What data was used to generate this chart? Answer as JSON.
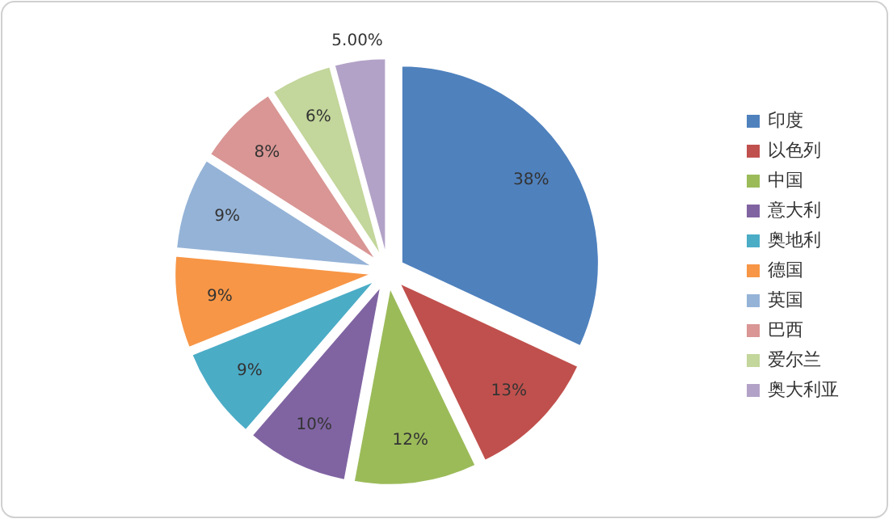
{
  "chart_data": {
    "type": "pie",
    "categories": [
      "印度",
      "以色列",
      "中国",
      "意大利",
      "奥地利",
      "德国",
      "英国",
      "巴西",
      "爱尔兰",
      "奥大利亚"
    ],
    "values": [
      38,
      13,
      12,
      10,
      9,
      9,
      9,
      8,
      6,
      5
    ],
    "value_labels": [
      "38%",
      "13%",
      "12%",
      "10%",
      "9%",
      "9%",
      "9%",
      "8%",
      "6%",
      "5.00%"
    ],
    "colors": [
      "#4f81bd",
      "#c0504d",
      "#9bbb59",
      "#8064a2",
      "#4bacc6",
      "#f79646",
      "#95b3d7",
      "#d99694",
      "#c3d69b",
      "#b3a2c7"
    ],
    "legend": "right"
  }
}
